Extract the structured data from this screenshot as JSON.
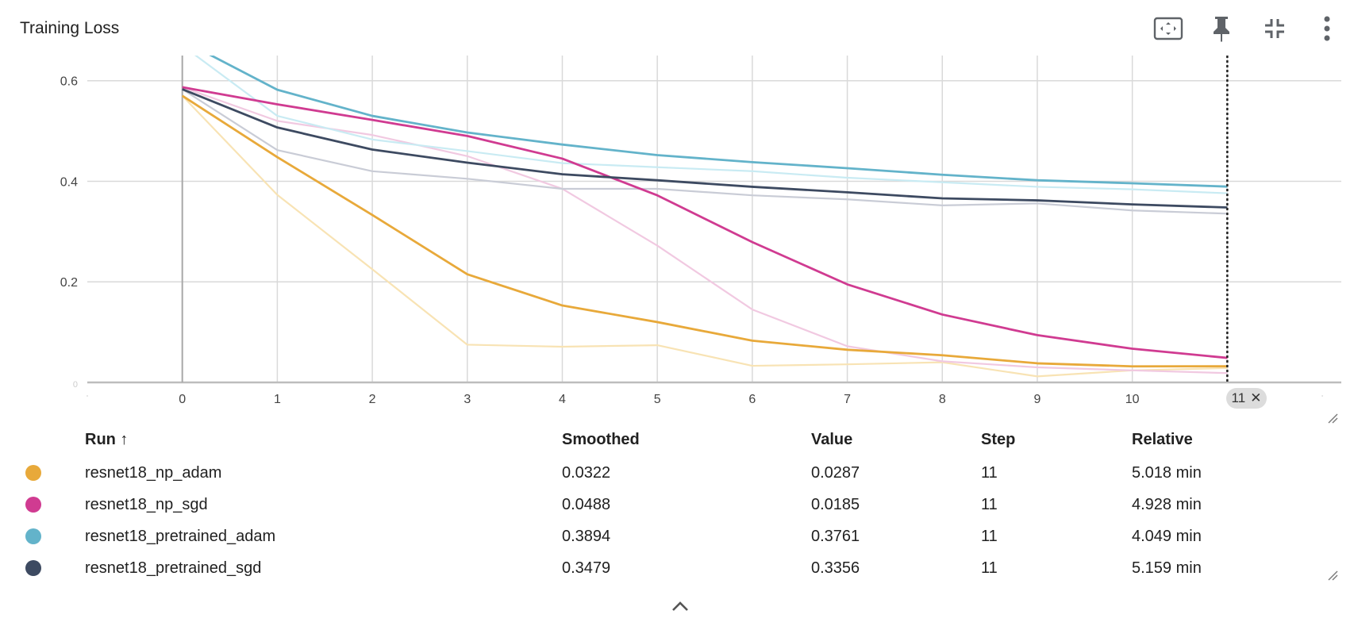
{
  "header": {
    "title": "Training Loss",
    "icons": [
      "fit-domain-icon",
      "pin-icon",
      "collapse-icon",
      "more-vert-icon"
    ]
  },
  "chart_data": {
    "type": "line",
    "x": [
      0,
      1,
      2,
      3,
      4,
      5,
      6,
      7,
      8,
      9,
      10,
      11
    ],
    "x_tick_labels": [
      "0",
      "1",
      "2",
      "3",
      "4",
      "5",
      "6",
      "7",
      "8",
      "9",
      "10",
      "11"
    ],
    "y_tick_labels": [
      "0",
      "0.2",
      "0.4",
      "0.6"
    ],
    "y_ticks": [
      0,
      0.2,
      0.4,
      0.6
    ],
    "xlim": [
      -1,
      12.2
    ],
    "ylim": [
      0,
      0.65
    ],
    "grid": true,
    "selected_step": "11",
    "series": [
      {
        "name": "resnet18_np_adam",
        "color": "#e8a93a",
        "raw_color": "#f8e3b4",
        "smoothed": [
          0.57,
          0.448,
          0.333,
          0.215,
          0.153,
          0.12,
          0.083,
          0.065,
          0.054,
          0.038,
          0.032,
          0.0322
        ],
        "raw": [
          0.57,
          0.373,
          0.225,
          0.075,
          0.071,
          0.074,
          0.033,
          0.036,
          0.04,
          0.012,
          0.024,
          0.0287
        ]
      },
      {
        "name": "resnet18_np_sgd",
        "color": "#d03b91",
        "raw_color": "#f1c9e1",
        "smoothed": [
          0.587,
          0.553,
          0.522,
          0.49,
          0.445,
          0.372,
          0.279,
          0.195,
          0.135,
          0.094,
          0.067,
          0.0488
        ],
        "raw": [
          0.587,
          0.52,
          0.492,
          0.45,
          0.385,
          0.272,
          0.145,
          0.072,
          0.042,
          0.03,
          0.024,
          0.0185
        ]
      },
      {
        "name": "resnet18_pretrained_adam",
        "color": "#63b3ca",
        "raw_color": "#c9ebf3",
        "smoothed": [
          0.68,
          0.582,
          0.53,
          0.497,
          0.473,
          0.452,
          0.438,
          0.426,
          0.413,
          0.402,
          0.396,
          0.3894
        ],
        "raw": [
          0.67,
          0.53,
          0.483,
          0.46,
          0.436,
          0.428,
          0.42,
          0.407,
          0.398,
          0.389,
          0.384,
          0.3761
        ]
      },
      {
        "name": "resnet18_pretrained_sgd",
        "color": "#3d4a61",
        "raw_color": "#c9ccd6",
        "smoothed": [
          0.583,
          0.507,
          0.463,
          0.437,
          0.414,
          0.402,
          0.389,
          0.378,
          0.366,
          0.362,
          0.354,
          0.3479
        ],
        "raw": [
          0.583,
          0.462,
          0.42,
          0.405,
          0.385,
          0.385,
          0.372,
          0.364,
          0.352,
          0.356,
          0.342,
          0.3356
        ]
      }
    ]
  },
  "table": {
    "headers": {
      "run": "Run ↑",
      "smoothed": "Smoothed",
      "value": "Value",
      "step": "Step",
      "relative": "Relative"
    },
    "rows": [
      {
        "color": "#e8a93a",
        "run": "resnet18_np_adam",
        "smoothed": "0.0322",
        "value": "0.0287",
        "step": "11",
        "relative": "5.018 min"
      },
      {
        "color": "#d03b91",
        "run": "resnet18_np_sgd",
        "smoothed": "0.0488",
        "value": "0.0185",
        "step": "11",
        "relative": "4.928 min"
      },
      {
        "color": "#63b3ca",
        "run": "resnet18_pretrained_adam",
        "smoothed": "0.3894",
        "value": "0.3761",
        "step": "11",
        "relative": "4.049 min"
      },
      {
        "color": "#3d4a61",
        "run": "resnet18_pretrained_sgd",
        "smoothed": "0.3479",
        "value": "0.3356",
        "step": "11",
        "relative": "5.159 min"
      }
    ]
  }
}
